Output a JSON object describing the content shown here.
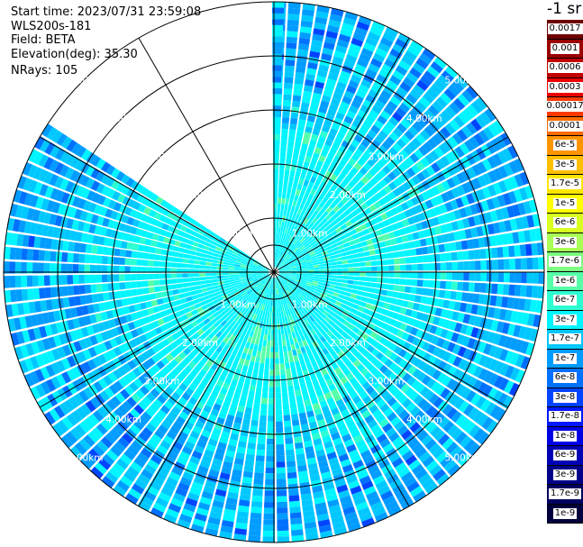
{
  "info": {
    "start_time": "Start time: 2023/07/31 23:59:08",
    "instrument": "WLS200s-181",
    "field": "Field: BETA",
    "elevation": "Elevation(deg): 35.30",
    "nrays": "NRays: 105"
  },
  "colorbar": {
    "title": "-1 sr",
    "bins": [
      {
        "label": "0.0017",
        "color": "#6e0000"
      },
      {
        "label": "0.001",
        "color": "#9a0000"
      },
      {
        "label": "0.0006",
        "color": "#c40000"
      },
      {
        "label": "0.0003",
        "color": "#ee0000"
      },
      {
        "label": "0.00017",
        "color": "#ff3a00"
      },
      {
        "label": "0.0001",
        "color": "#ff6a00"
      },
      {
        "label": "6e-5",
        "color": "#ff9500"
      },
      {
        "label": "3e-5",
        "color": "#ffbf00"
      },
      {
        "label": "1.7e-5",
        "color": "#ffe600"
      },
      {
        "label": "1e-5",
        "color": "#ffff00"
      },
      {
        "label": "6e-6",
        "color": "#d8ff20"
      },
      {
        "label": "3e-6",
        "color": "#a9ff55"
      },
      {
        "label": "1.7e-6",
        "color": "#7dff82"
      },
      {
        "label": "1e-6",
        "color": "#55ffa8"
      },
      {
        "label": "6e-7",
        "color": "#2dffd2"
      },
      {
        "label": "3e-7",
        "color": "#00f5ff"
      },
      {
        "label": "1.7e-7",
        "color": "#00c8ff"
      },
      {
        "label": "1e-7",
        "color": "#009cff"
      },
      {
        "label": "6e-8",
        "color": "#0070ff"
      },
      {
        "label": "3e-8",
        "color": "#0044ff"
      },
      {
        "label": "1.7e-8",
        "color": "#0018ff"
      },
      {
        "label": "1e-8",
        "color": "#0000e4"
      },
      {
        "label": "6e-9",
        "color": "#0000b4"
      },
      {
        "label": "3e-9",
        "color": "#000088"
      },
      {
        "label": "1.7e-9",
        "color": "#000060"
      },
      {
        "label": "1e-9",
        "color": "#00003c"
      }
    ]
  },
  "chart_data": {
    "type": "heatmap",
    "projection": "polar PPI (azimuth clockwise from north)",
    "field": "BETA",
    "nrays": 105,
    "range_rings_km": [
      0.5,
      1,
      2,
      3,
      4,
      5
    ],
    "ring_labels": [
      "1.00km",
      "2.00km",
      "3.00km",
      "4.00km",
      "5.00km"
    ],
    "max_range_km": 5,
    "spokes_deg_step": 30,
    "gap_azimuth_deg": [
      302,
      360
    ],
    "dominant_colors": [
      "#00f5ff",
      "#00c8ff",
      "#009cff",
      "#0070ff",
      "#2dffd2",
      "#55ffa8"
    ],
    "near_range_color": "#00f5ff",
    "far_range_color": "#009cff"
  }
}
